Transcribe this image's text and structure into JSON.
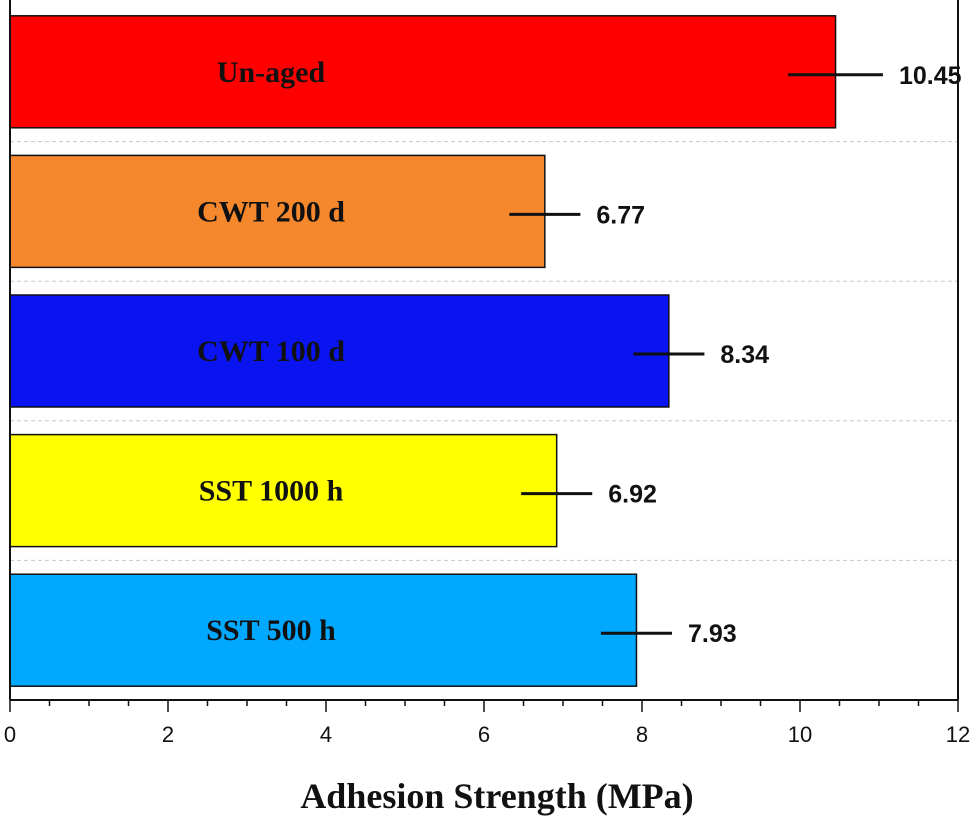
{
  "chart_data": {
    "type": "bar",
    "orientation": "horizontal",
    "title": "",
    "xlabel": "Adhesion Strength (MPa)",
    "ylabel": "",
    "xlim": [
      0,
      12
    ],
    "x_ticks": [
      0,
      2,
      4,
      6,
      8,
      10,
      12
    ],
    "x_tick_labels": [
      "0",
      "2",
      "4",
      "6",
      "8",
      "10",
      "12"
    ],
    "grid": "horizontal dashed",
    "categories": [
      "Un-aged",
      "CWT 200 d",
      "CWT 100 d",
      "SST 1000 h",
      "SST 500 h"
    ],
    "values": [
      10.45,
      6.77,
      8.34,
      6.92,
      7.93
    ],
    "value_labels": [
      "10.45",
      "6.77",
      "8.34",
      "6.92",
      "7.93"
    ],
    "error": [
      0.6,
      0.45,
      0.45,
      0.45,
      0.45
    ],
    "colors": [
      "#ff0000",
      "#f5872d",
      "#0a14f0",
      "#ffff00",
      "#00a8ff"
    ]
  }
}
